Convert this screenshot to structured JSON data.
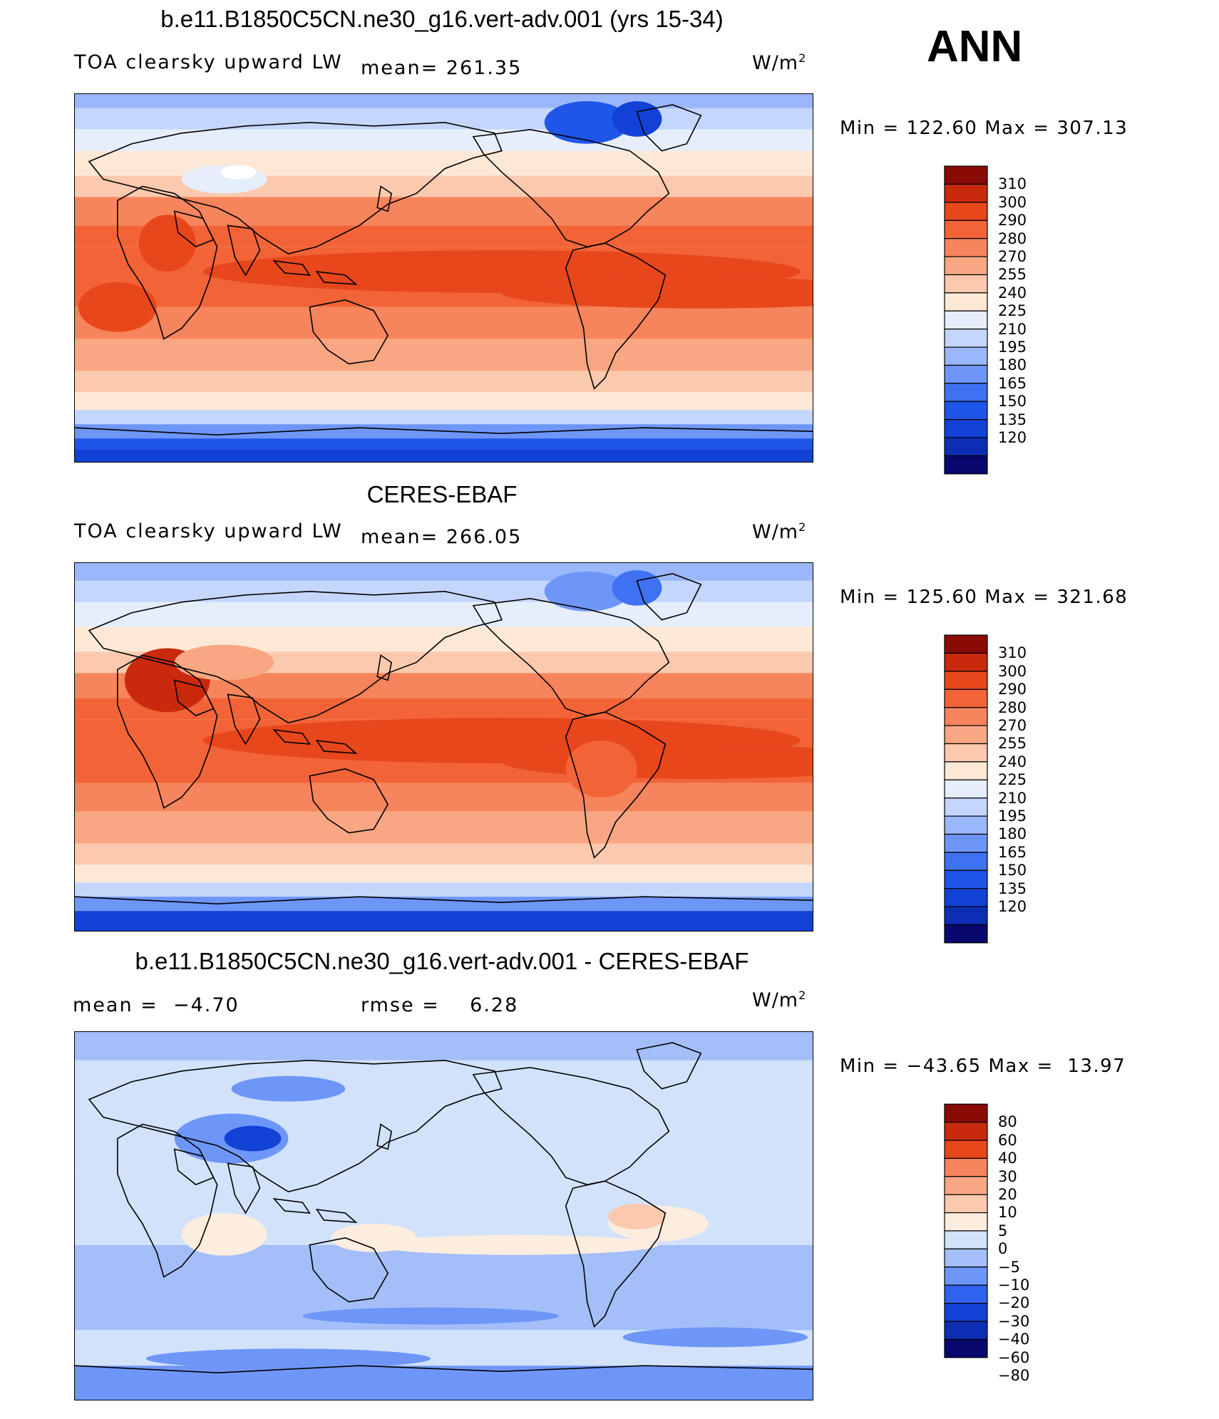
{
  "header": {
    "top_title": "b.e11.B1850C5CN.ne30_g16.vert-adv.001 (yrs 15-34)",
    "season": "ANN"
  },
  "colors": {
    "abs_palette": [
      "#08086e",
      "#0b2eb5",
      "#1241d6",
      "#1f55e8",
      "#3f72f2",
      "#6e96f8",
      "#9bb7fb",
      "#c4d6fc",
      "#e6eefc",
      "#fde8d6",
      "#fbc9ad",
      "#f9a783",
      "#f6845c",
      "#f26437",
      "#e8471c",
      "#c92a0d",
      "#8a0a06"
    ],
    "diff_palette": [
      "#08086e",
      "#0b2eb5",
      "#1241d6",
      "#2f63ef",
      "#6e96f8",
      "#a3bef9",
      "#d2e2fb",
      "#fdeddf",
      "#fbc9ad",
      "#f9a783",
      "#f6845c",
      "#e8471c",
      "#c92a0d",
      "#8a0a06"
    ]
  },
  "panels": [
    {
      "id": "model",
      "title": "",
      "variable": "TOA clearsky upward LW",
      "stat_label": "mean=",
      "stat_value": "261.35",
      "units": "W/m",
      "units_exp": "2",
      "min_label": "Min",
      "min_value": "122.60",
      "max_label": "Max",
      "max_value": "307.13",
      "levels": [
        "310",
        "300",
        "290",
        "280",
        "270",
        "255",
        "240",
        "225",
        "210",
        "195",
        "180",
        "165",
        "150",
        "135",
        "120"
      ]
    },
    {
      "id": "obs",
      "title": "CERES-EBAF",
      "variable": "TOA clearsky upward LW",
      "stat_label": "mean=",
      "stat_value": "266.05",
      "units": "W/m",
      "units_exp": "2",
      "min_label": "Min",
      "min_value": "125.60",
      "max_label": "Max",
      "max_value": "321.68",
      "levels": [
        "310",
        "300",
        "290",
        "280",
        "270",
        "255",
        "240",
        "225",
        "210",
        "195",
        "180",
        "165",
        "150",
        "135",
        "120"
      ]
    },
    {
      "id": "diff",
      "title": "b.e11.B1850C5CN.ne30_g16.vert-adv.001 - CERES-EBAF",
      "mean_label": "mean =",
      "mean_value": "−4.70",
      "rmse_label": "rmse =",
      "rmse_value": "6.28",
      "units": "W/m",
      "units_exp": "2",
      "min_label": "Min",
      "min_value": "−43.65",
      "max_label": "Max",
      "max_value": "13.97",
      "levels": [
        "80",
        "60",
        "40",
        "30",
        "20",
        "10",
        "5",
        "0",
        "−5",
        "−10",
        "−20",
        "−30",
        "−40",
        "−60",
        "−80"
      ]
    }
  ]
}
